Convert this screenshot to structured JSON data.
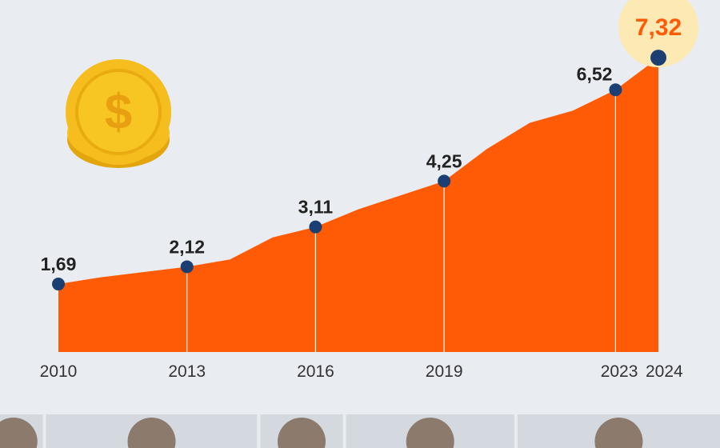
{
  "colors": {
    "background": "#e9edf1",
    "area": "#ff5a05",
    "marker": "#1b3f73",
    "guide_line": "#ffffff",
    "highlight_circle": "#fde9b3",
    "highlight_text": "#ff5a05",
    "coin": "#f5be1e",
    "portrait_strip": "#d3d9df"
  },
  "icons": {
    "coin": "dollar-coin-icon"
  },
  "chart_data": {
    "type": "area",
    "x": [
      2010,
      2011,
      2012,
      2013,
      2014,
      2015,
      2016,
      2017,
      2018,
      2019,
      2020,
      2021,
      2022,
      2023,
      2024
    ],
    "values": [
      1.69,
      1.86,
      1.99,
      2.12,
      2.3,
      2.85,
      3.11,
      3.55,
      3.9,
      4.25,
      5.05,
      5.7,
      6.0,
      6.52,
      7.32
    ],
    "xlim": [
      2010,
      2024
    ],
    "ylim": [
      0,
      7.6
    ],
    "grid": false,
    "legend": "none",
    "labeled_points": [
      {
        "x": 2010,
        "y": 1.69,
        "label": "1,69"
      },
      {
        "x": 2013,
        "y": 2.12,
        "label": "2,12"
      },
      {
        "x": 2016,
        "y": 3.11,
        "label": "3,11"
      },
      {
        "x": 2019,
        "y": 4.25,
        "label": "4,25"
      },
      {
        "x": 2023,
        "y": 6.52,
        "label": "6,52"
      },
      {
        "x": 2024,
        "y": 7.32,
        "label": "7,32",
        "highlight": true
      }
    ],
    "x_ticks": [
      {
        "value": 2010,
        "label": "2010"
      },
      {
        "value": 2013,
        "label": "2013"
      },
      {
        "value": 2016,
        "label": "2016"
      },
      {
        "value": 2019,
        "label": "2019"
      },
      {
        "value": 2023,
        "label": "2023"
      },
      {
        "value": 2024,
        "label": "2024"
      }
    ],
    "portrait_periods": [
      {
        "start": 2010,
        "end": 2011
      },
      {
        "start": 2011,
        "end": 2016
      },
      {
        "start": 2016,
        "end": 2018
      },
      {
        "start": 2018,
        "end": 2022
      },
      {
        "start": 2022,
        "end": 2024
      }
    ]
  }
}
